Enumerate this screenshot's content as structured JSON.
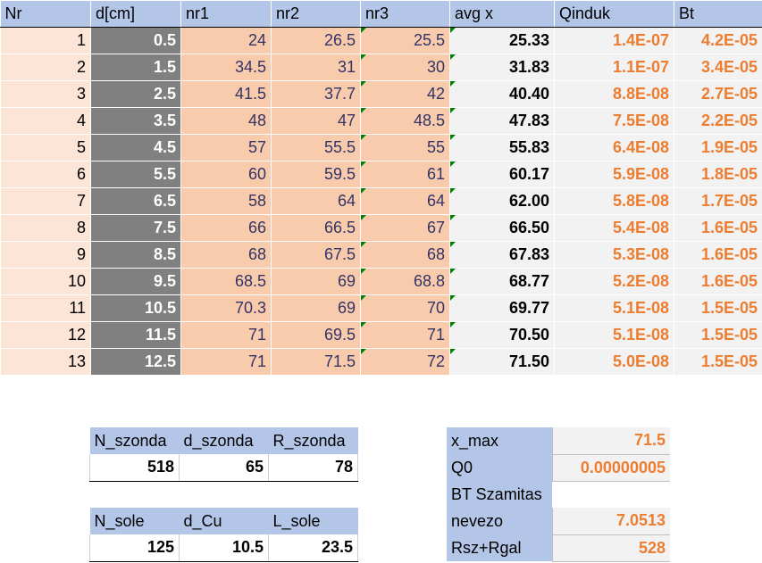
{
  "columns": [
    "Nr",
    "d[cm]",
    "nr1",
    "nr2",
    "nr3",
    "avg x",
    "Qinduk",
    "Bt"
  ],
  "rows": [
    {
      "nr": "1",
      "d": "0.5",
      "n1": "24",
      "n2": "26.5",
      "n3": "25.5",
      "avg": "25.33",
      "q": "1.4E-07",
      "bt": "4.2E-05"
    },
    {
      "nr": "2",
      "d": "1.5",
      "n1": "34.5",
      "n2": "31",
      "n3": "30",
      "avg": "31.83",
      "q": "1.1E-07",
      "bt": "3.4E-05"
    },
    {
      "nr": "3",
      "d": "2.5",
      "n1": "41.5",
      "n2": "37.7",
      "n3": "42",
      "avg": "40.40",
      "q": "8.8E-08",
      "bt": "2.7E-05"
    },
    {
      "nr": "4",
      "d": "3.5",
      "n1": "48",
      "n2": "47",
      "n3": "48.5",
      "avg": "47.83",
      "q": "7.5E-08",
      "bt": "2.2E-05"
    },
    {
      "nr": "5",
      "d": "4.5",
      "n1": "57",
      "n2": "55.5",
      "n3": "55",
      "avg": "55.83",
      "q": "6.4E-08",
      "bt": "1.9E-05"
    },
    {
      "nr": "6",
      "d": "5.5",
      "n1": "60",
      "n2": "59.5",
      "n3": "61",
      "avg": "60.17",
      "q": "5.9E-08",
      "bt": "1.8E-05"
    },
    {
      "nr": "7",
      "d": "6.5",
      "n1": "58",
      "n2": "64",
      "n3": "64",
      "avg": "62.00",
      "q": "5.8E-08",
      "bt": "1.7E-05"
    },
    {
      "nr": "8",
      "d": "7.5",
      "n1": "66",
      "n2": "66.5",
      "n3": "67",
      "avg": "66.50",
      "q": "5.4E-08",
      "bt": "1.6E-05"
    },
    {
      "nr": "9",
      "d": "8.5",
      "n1": "68",
      "n2": "67.5",
      "n3": "68",
      "avg": "67.83",
      "q": "5.3E-08",
      "bt": "1.6E-05"
    },
    {
      "nr": "10",
      "d": "9.5",
      "n1": "68.5",
      "n2": "69",
      "n3": "68.8",
      "avg": "68.77",
      "q": "5.2E-08",
      "bt": "1.6E-05"
    },
    {
      "nr": "11",
      "d": "10.5",
      "n1": "70.3",
      "n2": "69",
      "n3": "70",
      "avg": "69.77",
      "q": "5.1E-08",
      "bt": "1.5E-05"
    },
    {
      "nr": "12",
      "d": "11.5",
      "n1": "71",
      "n2": "69.5",
      "n3": "71",
      "avg": "70.50",
      "q": "5.1E-08",
      "bt": "1.5E-05"
    },
    {
      "nr": "13",
      "d": "12.5",
      "n1": "71",
      "n2": "71.5",
      "n3": "72",
      "avg": "71.50",
      "q": "5.0E-08",
      "bt": "1.5E-05"
    }
  ],
  "szonda": {
    "headers": [
      "N_szonda",
      "d_szonda",
      "R_szonda"
    ],
    "values": [
      "518",
      "65",
      "78"
    ]
  },
  "sole": {
    "headers": [
      "N_sole",
      "d_Cu",
      "L_sole"
    ],
    "values": [
      "125",
      "10.5",
      "23.5"
    ]
  },
  "params": [
    {
      "label": "x_max",
      "value": "71.5"
    },
    {
      "label": "Q0",
      "value": "0.00000005"
    },
    {
      "label": "BT Szamitas",
      "value": ""
    },
    {
      "label": "nevezo",
      "value": "7.0513"
    },
    {
      "label": "Rsz+Rgal",
      "value": "528"
    }
  ],
  "colors": {
    "header_blue": "#b4c6e7",
    "nr_pink": "#fce4d6",
    "d_gray": "#808080",
    "value_orange": "#f8cbad",
    "result_orange_text": "#ed7d31"
  }
}
